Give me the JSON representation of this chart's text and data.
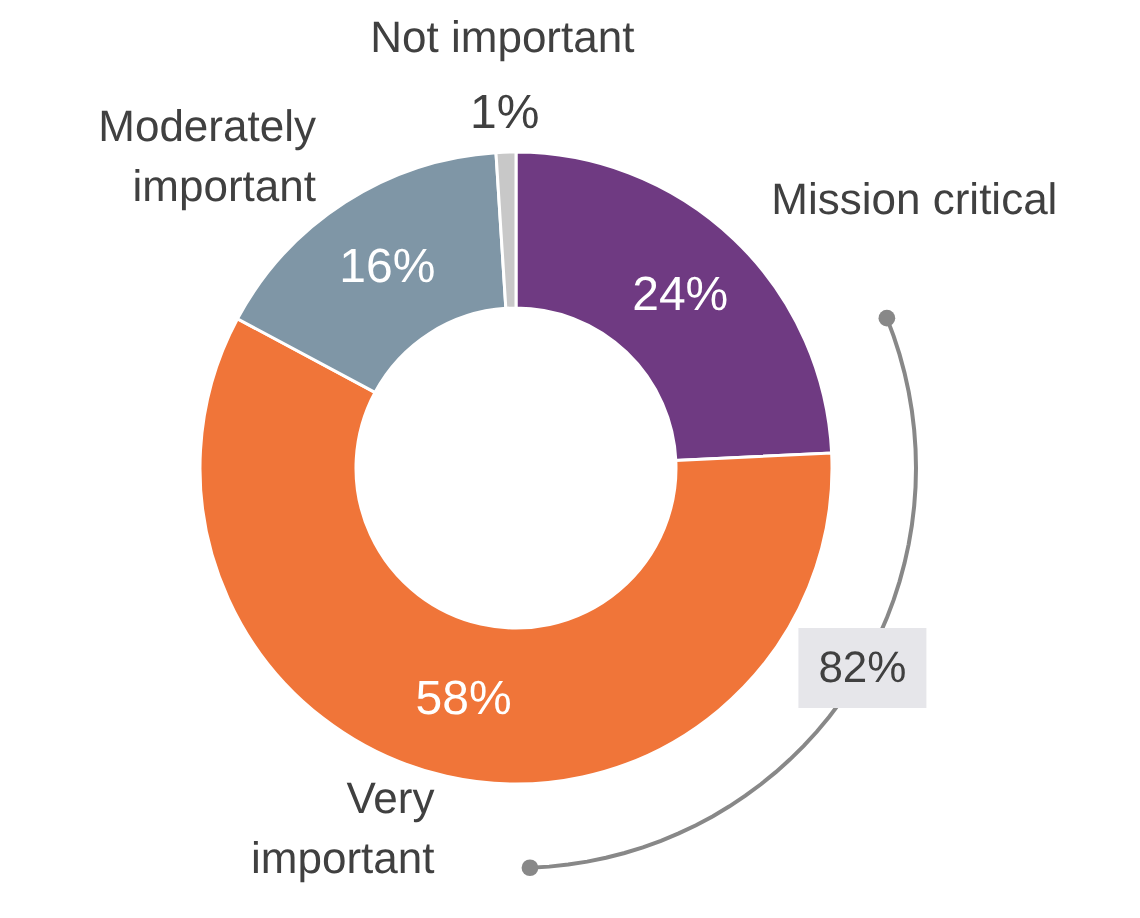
{
  "chart_data": {
    "type": "donut",
    "categories": [
      "Mission critical",
      "Very important",
      "Moderately important",
      "Not important"
    ],
    "values": [
      24,
      58,
      16,
      1
    ],
    "colors": [
      "#6f3a82",
      "#f07539",
      "#7f96a6",
      "#c8c8c8"
    ],
    "value_labels": [
      "24%",
      "58%",
      "16%",
      "1%"
    ],
    "annotations": [
      "82%"
    ]
  }
}
